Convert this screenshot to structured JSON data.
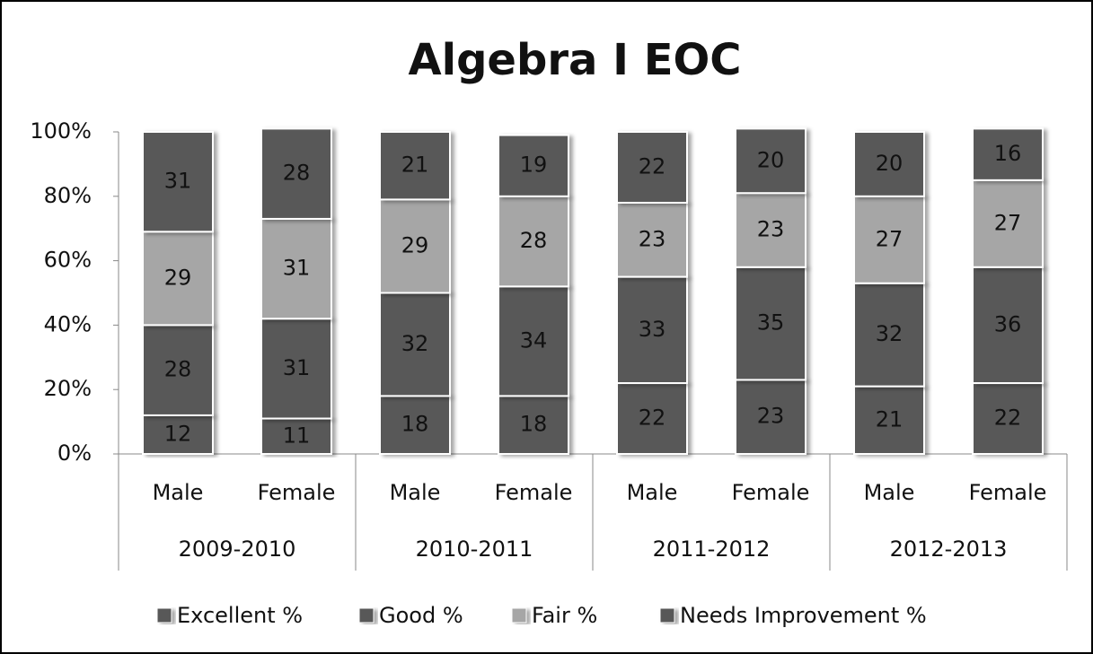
{
  "chart_data": {
    "type": "stacked_bar",
    "title": "Algebra I EOC",
    "categories": [
      "Male",
      "Female",
      "Male",
      "Female",
      "Male",
      "Female",
      "Male",
      "Female"
    ],
    "groups": [
      "2009-2010",
      "2010-2011",
      "2011-2012",
      "2012-2013"
    ],
    "series": [
      {
        "name": "Excellent %",
        "color": "#595959",
        "values": [
          12,
          11,
          18,
          18,
          22,
          23,
          21,
          22
        ]
      },
      {
        "name": "Good %",
        "color": "#595959",
        "values": [
          28,
          31,
          32,
          34,
          33,
          35,
          32,
          36
        ]
      },
      {
        "name": "Fair %",
        "color": "#a6a6a6",
        "values": [
          29,
          31,
          29,
          28,
          23,
          23,
          27,
          27
        ]
      },
      {
        "name": "Needs Improvement %",
        "color": "#595959",
        "values": [
          31,
          28,
          21,
          19,
          22,
          20,
          20,
          16
        ]
      }
    ],
    "ylim": [
      0,
      100
    ],
    "yticks": [
      {
        "value": 0,
        "label": "0%"
      },
      {
        "value": 20,
        "label": "20%"
      },
      {
        "value": 40,
        "label": "40%"
      },
      {
        "value": 60,
        "label": "60%"
      },
      {
        "value": 80,
        "label": "80%"
      },
      {
        "value": 100,
        "label": "100%"
      }
    ],
    "legend": "bottom"
  }
}
